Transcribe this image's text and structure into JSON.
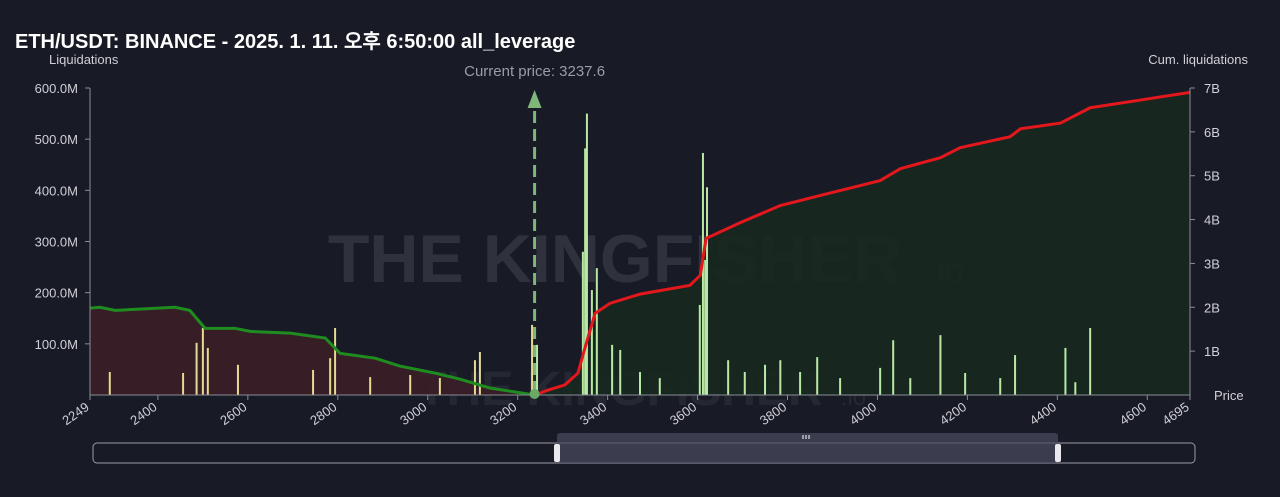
{
  "chart_data": {
    "type": "combo",
    "title": "ETH/USDT: BINANCE - 2025. 1. 11. 오후 6:50:00 all_leverage",
    "y_label": "Liquidations",
    "y2_label": "Cum. liquidations",
    "x_label": "Price",
    "annotation": "Current price: 3237.6",
    "current_price": 3237.6,
    "watermark": "THE KINGFISHER",
    "watermark_suffix": ".io",
    "xlim": [
      2249,
      4695
    ],
    "xticks": [
      2249,
      2400,
      2600,
      2800,
      3000,
      3200,
      3400,
      3600,
      3800,
      4000,
      4200,
      4400,
      4600,
      4695
    ],
    "ylim": [
      0,
      600000000
    ],
    "yticks": [
      {
        "value": 100000000,
        "label": "100.0M"
      },
      {
        "value": 200000000,
        "label": "200.0M"
      },
      {
        "value": 300000000,
        "label": "300.0M"
      },
      {
        "value": 400000000,
        "label": "400.0M"
      },
      {
        "value": 500000000,
        "label": "500.0M"
      },
      {
        "value": 600000000,
        "label": "600.0M"
      }
    ],
    "y2lim": [
      0,
      7000000000
    ],
    "y2ticks": [
      {
        "value": 1000000000,
        "label": "1B"
      },
      {
        "value": 2000000000,
        "label": "2B"
      },
      {
        "value": 3000000000,
        "label": "3B"
      },
      {
        "value": 4000000000,
        "label": "4B"
      },
      {
        "value": 5000000000,
        "label": "5B"
      },
      {
        "value": 6000000000,
        "label": "6B"
      },
      {
        "value": 7000000000,
        "label": "7B"
      }
    ],
    "bars": {
      "colors": {
        "below": "#e4da90",
        "above": "#b9e8a4"
      },
      "x": [
        2293,
        2456,
        2486,
        2500,
        2511,
        2578,
        2745,
        2783,
        2794,
        2872,
        2961,
        3027,
        3105,
        3116,
        3232,
        3243,
        3345,
        3350,
        3354,
        3365,
        3376,
        3410,
        3428,
        3472,
        3516,
        3605,
        3612,
        3617,
        3621,
        3668,
        3705,
        3750,
        3784,
        3828,
        3866,
        3917,
        4006,
        4035,
        4073,
        4140,
        4195,
        4273,
        4306,
        4418,
        4440,
        4473
      ],
      "values": [
        45000000,
        43000000,
        102000000,
        131000000,
        92000000,
        59000000,
        49000000,
        72000000,
        131000000,
        35000000,
        39000000,
        33000000,
        68000000,
        84000000,
        137000000,
        98000000,
        280000000,
        482000000,
        550000000,
        205000000,
        248000000,
        98000000,
        88000000,
        45000000,
        33000000,
        176000000,
        473000000,
        264000000,
        406000000,
        68000000,
        45000000,
        59000000,
        68000000,
        45000000,
        74000000,
        33000000,
        53000000,
        107000000,
        33000000,
        117000000,
        43000000,
        33000000,
        78000000,
        92000000,
        25000000,
        131000000
      ]
    },
    "lines": [
      {
        "axis": "y2",
        "color": "#1f8c1f",
        "fill": "#3a1e27",
        "x": [
          2249,
          2271,
          2305,
          2438,
          2471,
          2505,
          2571,
          2605,
          2694,
          2772,
          2805,
          2883,
          2938,
          3016,
          3072,
          3138,
          3237.6
        ],
        "values": [
          1980000000,
          2000000000,
          1930000000,
          2000000000,
          1930000000,
          1520000000,
          1520000000,
          1450000000,
          1410000000,
          1300000000,
          950000000,
          840000000,
          660000000,
          500000000,
          360000000,
          160000000,
          0
        ]
      },
      {
        "axis": "y2",
        "color": "#e3171c",
        "fill": "#17291f",
        "x": [
          3237.6,
          3267,
          3305,
          3334,
          3347,
          3372,
          3405,
          3472,
          3583,
          3606,
          3619,
          3695,
          3784,
          3873,
          4006,
          4051,
          4140,
          4184,
          4295,
          4318,
          4407,
          4473,
          4695
        ],
        "values": [
          0,
          110000000,
          230000000,
          500000000,
          980000000,
          1860000000,
          2090000000,
          2300000000,
          2500000000,
          2730000000,
          3570000000,
          3930000000,
          4320000000,
          4550000000,
          4890000000,
          5160000000,
          5410000000,
          5640000000,
          5890000000,
          6070000000,
          6200000000,
          6550000000,
          6900000000
        ]
      }
    ]
  }
}
